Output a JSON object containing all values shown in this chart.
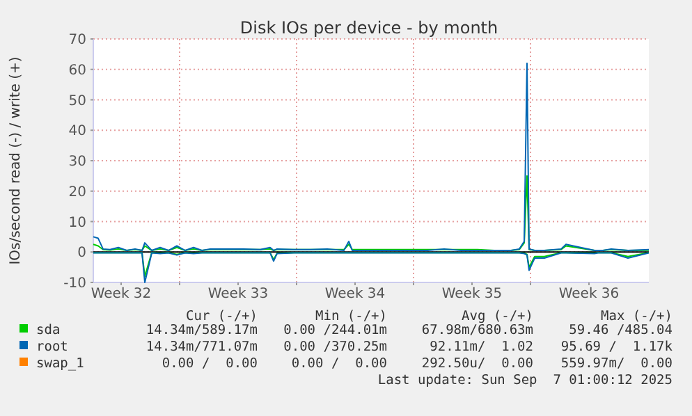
{
  "chart_data": {
    "type": "line",
    "title": "Disk IOs per device - by month",
    "ylabel": "IOs/second read (-) / write (+)",
    "x": [
      "2025-08-05T20:00",
      "2025-08-06T03:00",
      "2025-08-06T10:00",
      "2025-08-06T20:00",
      "2025-08-07T08:00",
      "2025-08-07T20:00",
      "2025-08-08T08:00",
      "2025-08-08T18:00",
      "2025-08-08T22:00",
      "2025-08-09T08:00",
      "2025-08-09T20:00",
      "2025-08-10T08:00",
      "2025-08-10T20:00",
      "2025-08-11T08:00",
      "2025-08-11T20:00",
      "2025-08-12T08:00",
      "2025-08-12T20:00",
      "2025-08-13T20:00",
      "2025-08-14T20:00",
      "2025-08-15T20:00",
      "2025-08-16T10:00",
      "2025-08-16T15:00",
      "2025-08-16T20:00",
      "2025-08-17T20:00",
      "2025-08-18T20:00",
      "2025-08-19T20:00",
      "2025-08-20T20:00",
      "2025-08-21T03:00",
      "2025-08-21T08:00",
      "2025-08-21T15:00",
      "2025-08-21T20:00",
      "2025-08-22T20:00",
      "2025-08-23T20:00",
      "2025-08-24T20:00",
      "2025-08-25T20:00",
      "2025-08-26T20:00",
      "2025-08-27T20:00",
      "2025-08-28T20:00",
      "2025-08-29T20:00",
      "2025-08-30T20:00",
      "2025-08-31T08:00",
      "2025-08-31T15:00",
      "2025-08-31T19:00",
      "2025-08-31T22:00",
      "2025-09-01T06:00",
      "2025-09-01T20:00",
      "2025-09-02T20:00",
      "2025-09-03T03:00",
      "2025-09-04T20:00",
      "2025-09-05T01:00",
      "2025-09-05T08:00",
      "2025-09-05T20:00",
      "2025-09-06T20:00",
      "2025-09-08T02:00"
    ],
    "xlim": [
      "2025-08-05T20:00",
      "2025-09-08T02:00"
    ],
    "xticks": [
      {
        "value": "2025-08-07T12:00",
        "label": "Week 32"
      },
      {
        "value": "2025-08-11",
        "label": null
      },
      {
        "value": "2025-08-14T12:00",
        "label": "Week 33"
      },
      {
        "value": "2025-08-18",
        "label": null
      },
      {
        "value": "2025-08-21T12:00",
        "label": "Week 34"
      },
      {
        "value": "2025-08-25",
        "label": null
      },
      {
        "value": "2025-08-28T12:00",
        "label": "Week 35"
      },
      {
        "value": "2025-09-01",
        "label": null
      },
      {
        "value": "2025-09-04T12:00",
        "label": "Week 36"
      }
    ],
    "ylim": [
      -10,
      70
    ],
    "yticks": [
      -10,
      0,
      10,
      20,
      30,
      40,
      50,
      60,
      70
    ],
    "grid": true,
    "legend": "bottom",
    "ref_lines": [
      {
        "axis": "y",
        "value": 0,
        "color": "#000000"
      }
    ],
    "series": [
      {
        "name": "sda",
        "color": "#00cc00",
        "values": [
          2.5,
          2,
          0.8,
          0.6,
          1,
          0.5,
          0.8,
          0.5,
          2,
          0.5,
          1,
          0.5,
          1.5,
          0.5,
          1,
          0.5,
          0.8,
          0.8,
          0.8,
          0.8,
          1,
          0.5,
          0.8,
          0.8,
          0.8,
          0.8,
          0.8,
          2.5,
          0.8,
          0.8,
          0.8,
          0.8,
          0.8,
          0.8,
          0.8,
          0.8,
          0.8,
          0.8,
          0.5,
          0.5,
          0.8,
          3,
          25,
          0.8,
          0.5,
          0.5,
          0.8,
          2,
          0.5,
          0.5,
          0.5,
          0.8,
          0.5,
          0.6
        ]
      },
      {
        "color": "#00cc00",
        "values": [
          -0.2,
          -0.2,
          -0.2,
          -0.2,
          -0.2,
          -0.2,
          -0.2,
          -0.2,
          -8,
          -0.2,
          -0.4,
          -0.2,
          -0.8,
          -0.2,
          -0.4,
          -0.2,
          -0.2,
          -0.2,
          -0.2,
          -0.2,
          -0.2,
          -2.5,
          -0.4,
          -0.2,
          -0.2,
          -0.2,
          -0.2,
          -0.2,
          -0.2,
          -0.2,
          -0.2,
          -0.2,
          -0.2,
          -0.2,
          -0.2,
          -0.2,
          -0.2,
          -0.2,
          -0.2,
          -0.2,
          -0.2,
          -0.4,
          -0.8,
          -5,
          -1.5,
          -1.5,
          -0.2,
          -0.2,
          -0.4,
          -0.2,
          -0.2,
          -0.2,
          -1.5,
          -0.2
        ]
      },
      {
        "name": "root",
        "color": "#0066b3",
        "values": [
          5,
          4.5,
          1,
          0.8,
          1.5,
          0.5,
          1,
          0.5,
          3,
          0.5,
          1.5,
          0.5,
          2,
          0.5,
          1.5,
          0.5,
          1,
          1,
          1,
          0.8,
          1.5,
          0.5,
          1,
          0.8,
          0.8,
          1,
          0.5,
          3.5,
          0.5,
          0.5,
          0.5,
          0.5,
          0.5,
          0.5,
          0.5,
          1,
          0.5,
          0.5,
          0.5,
          0.5,
          1,
          3.5,
          62,
          1,
          0.5,
          0.5,
          1,
          2.5,
          0.5,
          0.5,
          0.5,
          1,
          0.5,
          0.8
        ]
      },
      {
        "color": "#0066b3",
        "values": [
          -0.3,
          -0.3,
          -0.3,
          -0.3,
          -0.3,
          -0.3,
          -0.3,
          -0.3,
          -10,
          -0.3,
          -0.5,
          -0.3,
          -1,
          -0.3,
          -0.5,
          -0.3,
          -0.3,
          -0.3,
          -0.3,
          -0.3,
          -0.3,
          -3,
          -0.5,
          -0.3,
          -0.3,
          -0.3,
          -0.3,
          -0.3,
          -0.3,
          -0.3,
          -0.3,
          -0.3,
          -0.3,
          -0.3,
          -0.3,
          -0.3,
          -0.3,
          -0.3,
          -0.3,
          -0.3,
          -0.3,
          -0.5,
          -1,
          -6,
          -2,
          -2,
          -0.3,
          -0.3,
          -0.5,
          -0.3,
          -0.3,
          -0.3,
          -2,
          -0.3
        ]
      },
      {
        "name": "swap_1",
        "color": "#ff8000",
        "values": [
          null,
          null,
          null,
          null,
          null,
          null,
          null,
          null,
          null,
          null,
          null,
          null,
          null,
          null,
          null,
          null,
          null,
          null,
          null,
          null,
          null,
          null,
          null,
          null,
          null,
          null,
          null,
          null,
          null,
          null,
          null,
          null,
          null,
          null,
          null,
          null,
          null,
          null,
          null,
          null,
          null,
          null,
          null,
          null,
          null,
          null,
          null,
          null,
          null,
          null,
          null,
          null,
          null,
          null
        ]
      }
    ],
    "annotations": [
      "Cur (-/+)",
      "Min (-/+)",
      "Avg (-/+)",
      "Max (-/+)",
      "14.34m/589.17m",
      "0.00 /244.01m",
      "67.98m/680.63m",
      "59.46 /485.04",
      "14.34m/771.07m",
      "0.00 /370.25m",
      "92.11m/  1.02",
      "95.69 /  1.17k",
      "0.00 /  0.00",
      "0.00 /  0.00",
      "292.50u/  0.00",
      "559.97m/  0.00",
      "Last update: Sun Sep  7 01:00:12 2025"
    ]
  }
}
